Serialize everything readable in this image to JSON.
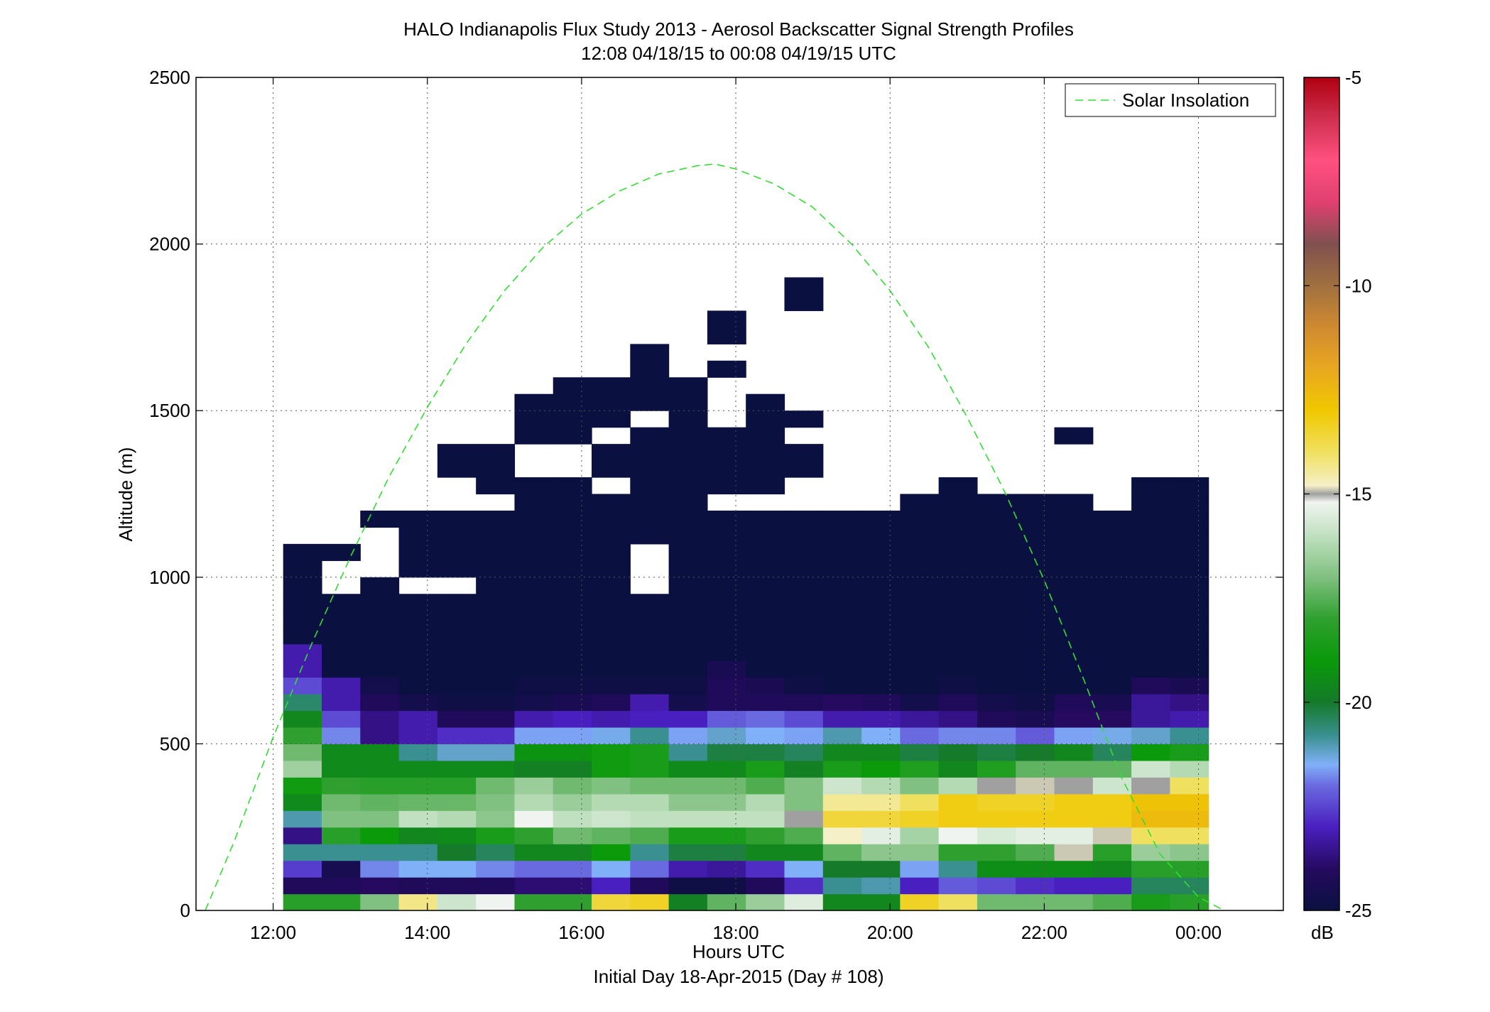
{
  "chart_data": {
    "type": "heatmap",
    "title": "HALO Indianapolis Flux Study 2013 - Aerosol Backscatter Signal Strength Profiles",
    "subtitle": "12:08 04/18/15 to 00:08 04/19/15  UTC",
    "xlabel": "Hours UTC",
    "xlabel2": "Initial Day 18-Apr-2015 (Day # 108)",
    "ylabel": "Altitude (m)",
    "xlim": [
      11.0,
      25.1
    ],
    "ylim": [
      0,
      2500
    ],
    "x_ticks": [
      12,
      14,
      16,
      18,
      20,
      22,
      24
    ],
    "x_tick_labels": [
      "12:00",
      "14:00",
      "16:00",
      "18:00",
      "20:00",
      "22:00",
      "00:00"
    ],
    "y_ticks": [
      0,
      500,
      1000,
      1500,
      2000,
      2500
    ],
    "y_tick_labels": [
      "0",
      "500",
      "1000",
      "1500",
      "2000",
      "2500"
    ],
    "grid": true,
    "legend": {
      "entries": [
        "Solar Insolation"
      ],
      "placement": "top-right"
    },
    "colorbar": {
      "label": "dB",
      "range": [
        -25,
        -5
      ],
      "ticks": [
        -25,
        -20,
        -15,
        -10,
        -5
      ],
      "tick_labels": [
        "-25",
        "-20",
        "-15",
        "-10",
        "-5"
      ],
      "stops": [
        {
          "v": -25,
          "c": "#0a1040"
        },
        {
          "v": -24,
          "c": "#250a60"
        },
        {
          "v": -23,
          "c": "#4a1fc0"
        },
        {
          "v": -22,
          "c": "#6a6ae0"
        },
        {
          "v": -21.5,
          "c": "#80b0f8"
        },
        {
          "v": -20.8,
          "c": "#3a9090"
        },
        {
          "v": -20,
          "c": "#157a2a"
        },
        {
          "v": -19,
          "c": "#0a9a0a"
        },
        {
          "v": -18,
          "c": "#2fa02f"
        },
        {
          "v": -17,
          "c": "#80c080"
        },
        {
          "v": -16,
          "c": "#c0e0c0"
        },
        {
          "v": -15.2,
          "c": "#f0f4f0"
        },
        {
          "v": -15,
          "c": "#a0a0a0"
        },
        {
          "v": -14.8,
          "c": "#f5f0c8"
        },
        {
          "v": -14,
          "c": "#f0e060"
        },
        {
          "v": -13,
          "c": "#f0c800"
        },
        {
          "v": -12,
          "c": "#e8a820"
        },
        {
          "v": -11,
          "c": "#d08a30"
        },
        {
          "v": -10,
          "c": "#a07040"
        },
        {
          "v": -9,
          "c": "#805050"
        },
        {
          "v": -8,
          "c": "#e04070"
        },
        {
          "v": -7,
          "c": "#ff5080"
        },
        {
          "v": -6,
          "c": "#d03050"
        },
        {
          "v": -5,
          "c": "#b00010"
        }
      ]
    },
    "solar_insolation": {
      "name": "Solar Insolation",
      "x": [
        11.12,
        11.5,
        12.0,
        12.5,
        13.0,
        13.5,
        14.0,
        14.5,
        15.0,
        15.5,
        16.0,
        16.5,
        17.0,
        17.5,
        17.73,
        18.0,
        18.5,
        19.0,
        19.5,
        20.0,
        20.5,
        21.0,
        21.5,
        22.0,
        22.5,
        23.0,
        23.5,
        24.0,
        24.33
      ],
      "y": [
        0,
        210,
        520,
        800,
        1060,
        1300,
        1510,
        1700,
        1860,
        1990,
        2090,
        2160,
        2210,
        2235,
        2240,
        2225,
        2180,
        2110,
        2000,
        1860,
        1690,
        1480,
        1250,
        990,
        700,
        400,
        170,
        40,
        0
      ]
    },
    "altitude_bins_top_m": [
      50,
      100,
      150,
      200,
      250,
      300,
      350,
      400,
      450,
      500,
      550,
      600,
      650,
      700,
      750,
      800,
      850,
      900,
      950,
      1000,
      1050,
      1100,
      1150,
      1200,
      1250,
      1300,
      1350,
      1400,
      1450,
      1500,
      1550,
      1600,
      1650,
      1700,
      1750,
      1800,
      1850,
      1900,
      1950
    ],
    "time_columns_start_h": [
      12.13,
      12.63,
      13.13,
      13.63,
      14.13,
      14.63,
      15.13,
      15.63,
      16.13,
      16.63,
      17.13,
      17.63,
      18.13,
      18.63,
      19.13,
      19.63,
      20.13,
      20.63,
      21.13,
      21.63,
      22.13,
      22.63,
      23.13,
      23.63
    ],
    "column_width_h": 0.5,
    "columns": [
      {
        "max_m": 1100,
        "gaps": [],
        "cells": [
          -18.2,
          -24.2,
          -22.6,
          -20.8,
          -23.6,
          -21.0,
          -19.5,
          -18.8,
          -16.5,
          -17.2,
          -18.0,
          -19.6,
          -20.5,
          -22.4,
          -23.2,
          -23.2,
          -25,
          -25,
          -25,
          -25,
          -25,
          -25
        ]
      },
      {
        "max_m": 1100,
        "gaps": [
          1050,
          1000
        ],
        "cells": [
          -18.2,
          -24.2,
          -24.5,
          -20.8,
          -18.2,
          -17.0,
          -17.2,
          -18.0,
          -19.5,
          -19.5,
          -21.8,
          -22.4,
          -23.2,
          -23.2,
          -25,
          -25,
          -25,
          -25,
          -25,
          -25,
          -25,
          -25
        ]
      },
      {
        "max_m": 1200,
        "gaps": [
          1150,
          1100,
          1050
        ],
        "cells": [
          -17.0,
          -24.0,
          -21.8,
          -20.8,
          -19.0,
          -17.0,
          -17.4,
          -18.2,
          -19.5,
          -19.5,
          -23.6,
          -23.6,
          -24.2,
          -24.6,
          -25,
          -25,
          -25,
          -25,
          -25,
          -25,
          -25,
          -25,
          -25,
          -25
        ]
      },
      {
        "max_m": 1200,
        "gaps": [
          1000
        ],
        "cells": [
          -14.3,
          -24.2,
          -21.5,
          -20.8,
          -19.6,
          -16.0,
          -17.3,
          -18.2,
          -19.5,
          -20.8,
          -23.2,
          -23.2,
          -24.6,
          -25,
          -25,
          -25,
          -25,
          -25,
          -25,
          -25,
          -25,
          -25,
          -25,
          -25
        ]
      },
      {
        "max_m": 1400,
        "gaps": [
          1300,
          1250,
          1000
        ],
        "cells": [
          -15.8,
          -24.2,
          -21.5,
          -20.0,
          -19.5,
          -16.2,
          -17.3,
          -18.2,
          -19.5,
          -21.2,
          -22.8,
          -24.2,
          -24.8,
          -25,
          -25,
          -25,
          -25,
          -25,
          -25,
          -25,
          -25,
          -25,
          -25,
          -25,
          -25,
          -25,
          -25,
          -25
        ]
      },
      {
        "max_m": 1400,
        "gaps": [
          1250
        ],
        "cells": [
          -15.2,
          -24.2,
          -21.8,
          -20.4,
          -18.6,
          -16.8,
          -17.0,
          -17.2,
          -19.5,
          -21.2,
          -22.8,
          -24.2,
          -24.8,
          -25,
          -25,
          -25,
          -25,
          -25,
          -25,
          -25,
          -25,
          -25,
          -25,
          -25,
          -25,
          -25,
          -25,
          -25
        ]
      },
      {
        "max_m": 1550,
        "gaps": [
          1400,
          1350
        ],
        "cells": [
          -18.0,
          -23.8,
          -22.0,
          -19.6,
          -18.0,
          -15.2,
          -16.2,
          -16.6,
          -19.8,
          -19.2,
          -21.6,
          -23.2,
          -24.6,
          -24.8,
          -25,
          -25,
          -25,
          -25,
          -25,
          -25,
          -25,
          -25,
          -25,
          -25,
          -25,
          -25,
          -25,
          -25,
          -25,
          -25,
          -25
        ]
      },
      {
        "max_m": 1600,
        "gaps": [
          1400,
          1350
        ],
        "cells": [
          -18.0,
          -23.8,
          -22.0,
          -19.6,
          -17.2,
          -16.0,
          -16.6,
          -17.2,
          -19.8,
          -19.2,
          -21.6,
          -23.0,
          -24.4,
          -24.8,
          -25,
          -25,
          -25,
          -25,
          -25,
          -25,
          -25,
          -25,
          -25,
          -25,
          -25,
          -25,
          -25,
          -25,
          -25,
          -25,
          -25,
          -25
        ]
      },
      {
        "max_m": 1600,
        "gaps": [
          1450,
          1300
        ],
        "cells": [
          -13.6,
          -23.0,
          -21.5,
          -19.0,
          -17.4,
          -15.8,
          -16.2,
          -17.0,
          -18.8,
          -18.8,
          -21.4,
          -23.2,
          -24.2,
          -24.8,
          -25,
          -25,
          -25,
          -25,
          -25,
          -25,
          -25,
          -25,
          -25,
          -25,
          -25,
          -25,
          -25,
          -25,
          -25,
          -25,
          -25,
          -25
        ]
      },
      {
        "max_m": 1700,
        "gaps": [
          1500,
          1100,
          1050,
          1000
        ],
        "cells": [
          -13.4,
          -24.2,
          -22.0,
          -20.8,
          -17.6,
          -16.0,
          -16.2,
          -17.2,
          -18.6,
          -18.6,
          -20.8,
          -23.0,
          -23.2,
          -24.8,
          -25,
          -25,
          -25,
          -25,
          -25,
          -25,
          -25,
          -25,
          -25,
          -25,
          -25,
          -25,
          -25,
          -25,
          -25,
          -25,
          -25,
          -25,
          -25,
          -25
        ]
      },
      {
        "max_m": 1600,
        "gaps": [],
        "cells": [
          -19.8,
          -24.8,
          -23.2,
          -20.2,
          -18.6,
          -16.0,
          -16.8,
          -17.2,
          -19.5,
          -20.8,
          -21.6,
          -23.0,
          -24.6,
          -24.8,
          -25,
          -25,
          -25,
          -25,
          -25,
          -25,
          -25,
          -25,
          -25,
          -25,
          -25,
          -25,
          -25,
          -25,
          -25,
          -25,
          -25,
          -25
        ]
      },
      {
        "max_m": 1800,
        "gaps": [
          1700,
          1600,
          1550,
          1500,
          1250
        ],
        "cells": [
          -17.4,
          -24.8,
          -23.4,
          -20.2,
          -18.6,
          -16.0,
          -16.8,
          -17.2,
          -19.5,
          -20.2,
          -21.2,
          -22.2,
          -24.2,
          -24.2,
          -24.4,
          -25,
          -25,
          -25,
          -25,
          -25,
          -25,
          -25,
          -25,
          -25,
          -25,
          -25,
          -25,
          -25,
          -25,
          -25,
          -25,
          -25,
          -25,
          -25,
          -25,
          -25
        ]
      },
      {
        "max_m": 1550,
        "gaps": [
          1250
        ],
        "cells": [
          -16.6,
          -24.2,
          -22.8,
          -19.6,
          -18.0,
          -16.0,
          -16.2,
          -17.6,
          -18.6,
          -20.2,
          -21.5,
          -22.0,
          -24.2,
          -24.4,
          -25,
          -25,
          -25,
          -25,
          -25,
          -25,
          -25,
          -25,
          -25,
          -25,
          -25,
          -25,
          -25,
          -25,
          -25,
          -25,
          -25
        ]
      },
      {
        "max_m": 1900,
        "gaps": [
          1800,
          1750,
          1700,
          1650,
          1600,
          1550,
          1450,
          1300,
          1250
        ],
        "cells": [
          -15.5,
          -22.8,
          -21.5,
          -19.6,
          -17.6,
          -15.0,
          -17.0,
          -17.0,
          -19.8,
          -20.4,
          -21.6,
          -22.4,
          -24.2,
          -24.8,
          -25,
          -25,
          -25,
          -25,
          -25,
          -25,
          -25,
          -25,
          -25,
          -25,
          -25,
          -25,
          -25,
          -25,
          -25,
          -25,
          -25,
          -25,
          -25,
          -25,
          -25,
          -25,
          -25,
          -25
        ]
      },
      {
        "max_m": 1200,
        "gaps": [],
        "cells": [
          -19.6,
          -20.8,
          -20.0,
          -17.4,
          -14.8,
          -13.6,
          -14.4,
          -15.8,
          -18.6,
          -19.6,
          -21.0,
          -23.2,
          -24.0,
          -25,
          -25,
          -25,
          -25,
          -25,
          -25,
          -25,
          -25,
          -25,
          -25,
          -25
        ]
      },
      {
        "max_m": 1200,
        "gaps": [],
        "cells": [
          -19.6,
          -21.0,
          -20.0,
          -16.8,
          -15.4,
          -13.6,
          -14.4,
          -16.2,
          -19.0,
          -19.6,
          -21.5,
          -23.2,
          -24.2,
          -25,
          -25,
          -25,
          -25,
          -25,
          -25,
          -25,
          -25,
          -25,
          -25,
          -25
        ]
      },
      {
        "max_m": 1250,
        "gaps": [],
        "cells": [
          -13.4,
          -23.0,
          -21.6,
          -16.8,
          -16.4,
          -13.4,
          -14.0,
          -17.0,
          -18.4,
          -20.2,
          -22.0,
          -23.4,
          -24.6,
          -25,
          -25,
          -25,
          -25,
          -25,
          -25,
          -25,
          -25,
          -25,
          -25,
          -25,
          -25
        ]
      },
      {
        "max_m": 1300,
        "gaps": [],
        "cells": [
          -14.0,
          -22.2,
          -20.8,
          -18.0,
          -15.2,
          -13.2,
          -13.2,
          -16.2,
          -19.6,
          -20.0,
          -21.8,
          -23.6,
          -24.2,
          -24.8,
          -25,
          -25,
          -25,
          -25,
          -25,
          -25,
          -25,
          -25,
          -25,
          -25,
          -25,
          -25
        ]
      },
      {
        "max_m": 1250,
        "gaps": [],
        "cells": [
          -17.2,
          -22.4,
          -19.4,
          -18.0,
          -15.6,
          -13.2,
          -13.4,
          -15.0,
          -18.4,
          -20.2,
          -21.8,
          -24.2,
          -24.6,
          -25,
          -25,
          -25,
          -25,
          -25,
          -25,
          -25,
          -25,
          -25,
          -25,
          -25,
          -25
        ]
      },
      {
        "max_m": 1250,
        "gaps": [],
        "cells": [
          -17.2,
          -22.8,
          -19.4,
          -17.6,
          -15.4,
          -13.2,
          -13.4,
          -14.9,
          -17.4,
          -20.0,
          -22.2,
          -24.4,
          -24.8,
          -25,
          -25,
          -25,
          -25,
          -25,
          -25,
          -25,
          -25,
          -25,
          -25,
          -25,
          -25
        ]
      },
      {
        "max_m": 1450,
        "gaps": [
          1400,
          1350,
          1300
        ],
        "cells": [
          -17.2,
          -23.0,
          -19.4,
          -14.9,
          -15.4,
          -13.2,
          -13.2,
          -15.0,
          -17.4,
          -19.6,
          -21.6,
          -24.0,
          -24.2,
          -25,
          -25,
          -25,
          -25,
          -25,
          -25,
          -25,
          -25,
          -25,
          -25,
          -25,
          -25,
          -25,
          -25,
          -25,
          -25
        ]
      },
      {
        "max_m": 1200,
        "gaps": [],
        "cells": [
          -17.6,
          -23.0,
          -19.6,
          -18.2,
          -14.9,
          -13.2,
          -13.2,
          -15.8,
          -17.4,
          -20.4,
          -21.4,
          -24.0,
          -24.4,
          -25,
          -25,
          -25,
          -25,
          -25,
          -25,
          -25,
          -25,
          -25,
          -25,
          -25
        ]
      },
      {
        "max_m": 1300,
        "gaps": [],
        "cells": [
          -18.6,
          -20.4,
          -18.2,
          -16.6,
          -14.0,
          -12.6,
          -12.8,
          -15.0,
          -15.8,
          -19.0,
          -21.2,
          -23.4,
          -23.4,
          -24.2,
          -25,
          -25,
          -25,
          -25,
          -25,
          -25,
          -25,
          -25,
          -25,
          -25,
          -25,
          -25
        ]
      },
      {
        "max_m": 1300,
        "gaps": [],
        "cells": [
          -18.2,
          -20.4,
          -18.2,
          -16.8,
          -14.0,
          -12.6,
          -12.8,
          -14.0,
          -16.2,
          -18.6,
          -20.8,
          -23.2,
          -23.6,
          -24.4,
          -25,
          -25,
          -25,
          -25,
          -25,
          -25,
          -25,
          -25,
          -25,
          -25,
          -25,
          -25
        ]
      }
    ]
  }
}
